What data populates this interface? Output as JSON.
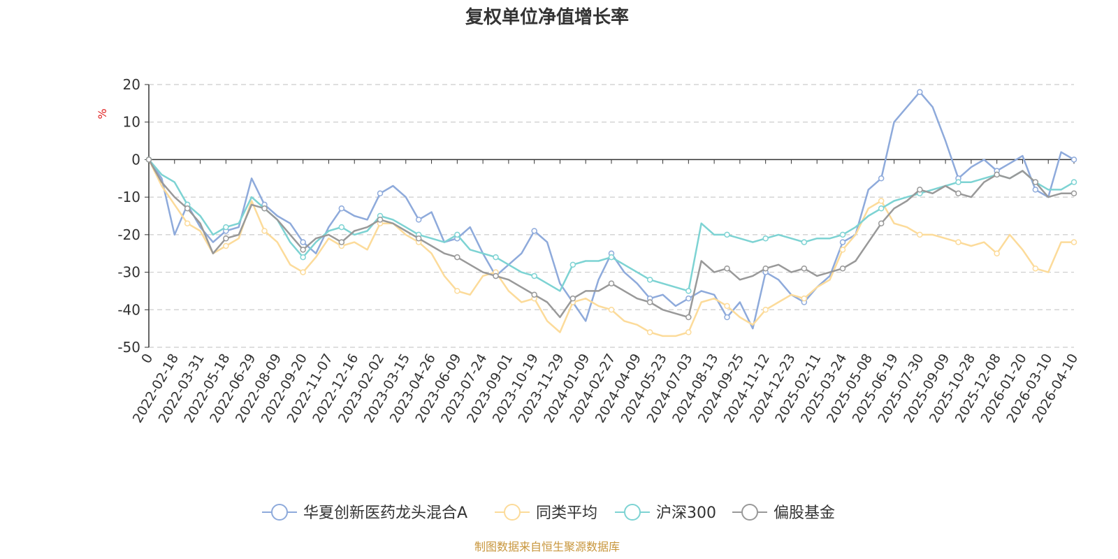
{
  "chart_data": {
    "type": "line",
    "title": "复权单位净值增长率",
    "ylabel": "%",
    "ylim": [
      -50,
      20
    ],
    "yticks": [
      "20",
      "10",
      "0",
      "-10",
      "-20",
      "-30",
      "-40",
      "-50"
    ],
    "x_tick_labels": [
      "0",
      "2022-02-18",
      "2022-03-31",
      "2022-05-18",
      "2022-06-29",
      "2022-08-09",
      "2022-09-20",
      "2022-11-07",
      "2022-12-16",
      "2023-02-02",
      "2023-03-15",
      "2023-04-26",
      "2023-06-09",
      "2023-07-24",
      "2023-09-01",
      "2023-10-19",
      "2023-11-29",
      "2024-01-09",
      "2024-02-27",
      "2024-04-09",
      "2024-05-23",
      "2024-07-03",
      "2024-08-13",
      "2024-09-25",
      "2024-11-12",
      "2024-12-23",
      "2025-02-11",
      "2025-03-24",
      "2025-05-08",
      "2025-06-19",
      "2025-07-30",
      "2025-09-09",
      "2025-10-28",
      "2025-12-08",
      "2026-01-20",
      "2026-03-10",
      "2026-04-10"
    ],
    "grid": true,
    "legend_position": "bottom",
    "series": [
      {
        "name": "华夏创新医药龙头混合A",
        "color": "#8eaadb",
        "values": [
          0,
          -5,
          -20,
          -12,
          -18,
          -22,
          -19,
          -18,
          -5,
          -12,
          -15,
          -17,
          -22,
          -25,
          -18,
          -13,
          -15,
          -16,
          -9,
          -7,
          -10,
          -16,
          -14,
          -22,
          -21,
          -18,
          -25,
          -31,
          -28,
          -25,
          -19,
          -22,
          -33,
          -38,
          -43,
          -32,
          -25,
          -30,
          -33,
          -37,
          -36,
          -39,
          -37,
          -35,
          -36,
          -42,
          -38,
          -45,
          -30,
          -32,
          -36,
          -38,
          -34,
          -31,
          -22,
          -20,
          -8,
          -5,
          10,
          14,
          18,
          14,
          5,
          -5,
          -2,
          0,
          -3,
          -1,
          1,
          -8,
          -10,
          2,
          0
        ]
      },
      {
        "name": "同类平均",
        "color": "#fcdb9a",
        "values": [
          0,
          -7,
          -12,
          -17,
          -19,
          -25,
          -23,
          -21,
          -11,
          -19,
          -22,
          -28,
          -30,
          -26,
          -21,
          -23,
          -22,
          -24,
          -17,
          -17,
          -20,
          -22,
          -25,
          -31,
          -35,
          -36,
          -31,
          -30,
          -35,
          -38,
          -37,
          -43,
          -46,
          -38,
          -37,
          -39,
          -40,
          -43,
          -44,
          -46,
          -47,
          -47,
          -46,
          -38,
          -37,
          -39,
          -42,
          -44,
          -40,
          -38,
          -36,
          -37,
          -34,
          -32,
          -24,
          -20,
          -13,
          -11,
          -17,
          -18,
          -20,
          -20,
          -21,
          -22,
          -23,
          -22,
          -25,
          -20,
          -24,
          -29,
          -30,
          -22,
          -22
        ]
      },
      {
        "name": "沪深300",
        "color": "#7dd3d3",
        "values": [
          0,
          -4,
          -6,
          -12,
          -15,
          -20,
          -18,
          -17,
          -10,
          -13,
          -16,
          -22,
          -26,
          -22,
          -19,
          -18,
          -20,
          -19,
          -15,
          -16,
          -18,
          -20,
          -21,
          -22,
          -20,
          -24,
          -25,
          -26,
          -28,
          -30,
          -31,
          -33,
          -35,
          -28,
          -27,
          -27,
          -26,
          -28,
          -30,
          -32,
          -33,
          -34,
          -35,
          -17,
          -20,
          -20,
          -21,
          -22,
          -21,
          -20,
          -21,
          -22,
          -21,
          -21,
          -20,
          -18,
          -15,
          -13,
          -11,
          -10,
          -9,
          -8,
          -7,
          -6,
          -6,
          -5,
          -4,
          -5,
          -3,
          -6,
          -8,
          -8,
          -6
        ]
      },
      {
        "name": "偏股基金",
        "color": "#999999",
        "values": [
          0,
          -6,
          -10,
          -13,
          -17,
          -25,
          -21,
          -20,
          -12,
          -13,
          -16,
          -20,
          -24,
          -21,
          -20,
          -22,
          -19,
          -18,
          -16,
          -17,
          -19,
          -21,
          -23,
          -25,
          -26,
          -28,
          -30,
          -31,
          -32,
          -34,
          -36,
          -38,
          -42,
          -37,
          -35,
          -35,
          -33,
          -35,
          -37,
          -38,
          -40,
          -41,
          -42,
          -27,
          -30,
          -29,
          -32,
          -31,
          -29,
          -28,
          -30,
          -29,
          -31,
          -30,
          -29,
          -27,
          -22,
          -17,
          -13,
          -11,
          -8,
          -9,
          -7,
          -9,
          -10,
          -6,
          -4,
          -5,
          -3,
          -6,
          -10,
          -9,
          -9
        ]
      }
    ],
    "source_note": "制图数据来自恒生聚源数据库"
  }
}
